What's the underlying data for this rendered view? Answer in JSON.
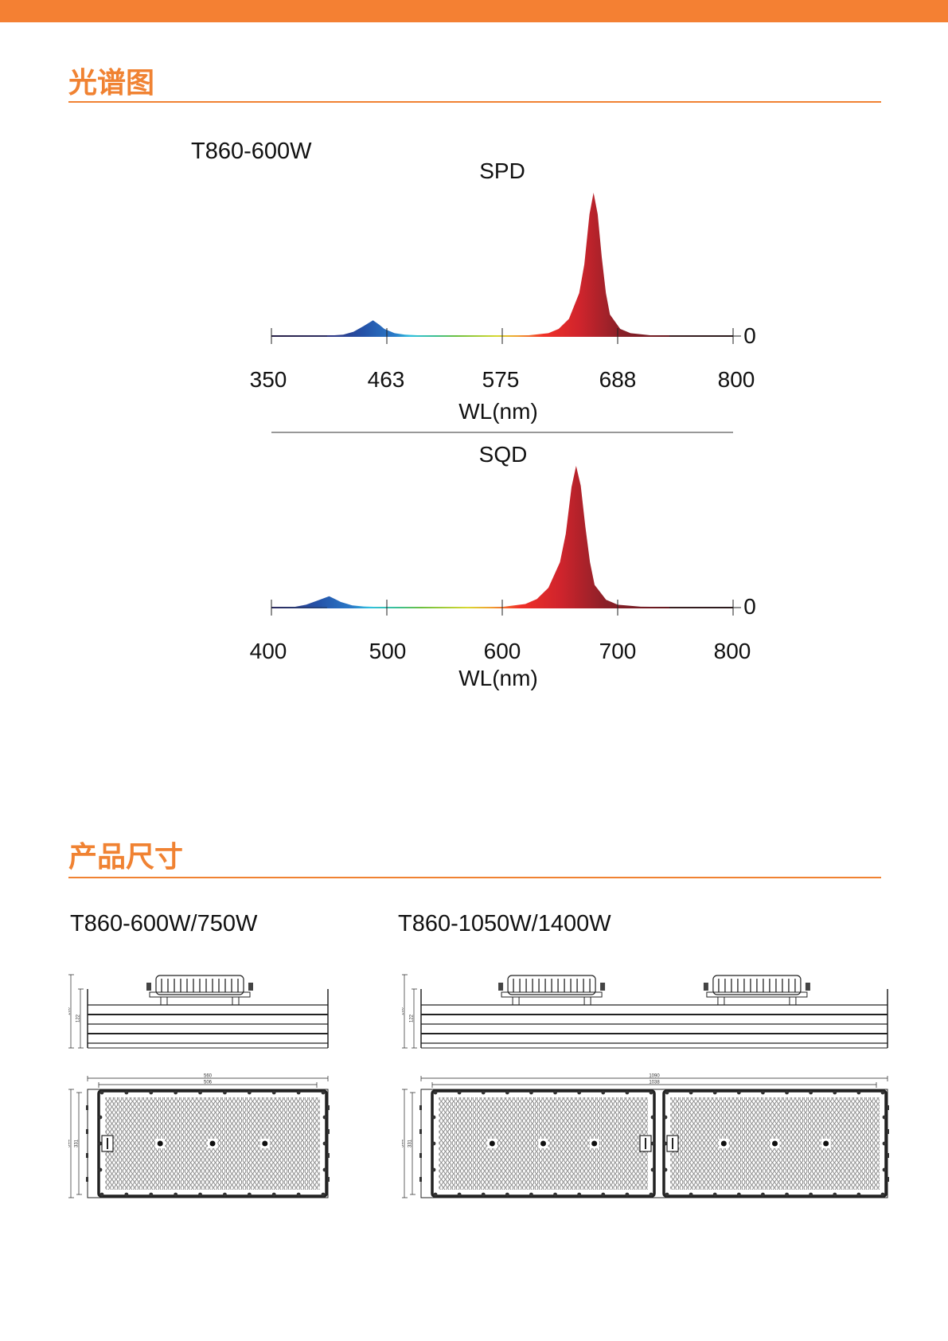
{
  "header": {
    "bar_color": "#f48033",
    "accent": "#f08232"
  },
  "spectrum_section": {
    "title": "光谱图",
    "model": "T860-600W"
  },
  "chart_data": [
    {
      "type": "area",
      "title": "SPD",
      "xlabel": "WL(nm)",
      "ylabel": "",
      "xlim": [
        350,
        800
      ],
      "x_ticks": [
        "350",
        "463",
        "575",
        "688",
        "800"
      ],
      "y_tick_label": "0",
      "grid": false,
      "fill": "spectral gradient by wavelength",
      "x": [
        350,
        400,
        420,
        430,
        440,
        449,
        455,
        460,
        470,
        480,
        500,
        550,
        600,
        620,
        630,
        640,
        650,
        655,
        660,
        664,
        668,
        672,
        676,
        680,
        690,
        700,
        720,
        800
      ],
      "values": [
        0,
        0,
        0.01,
        0.03,
        0.07,
        0.11,
        0.08,
        0.05,
        0.02,
        0.01,
        0.003,
        0.002,
        0.005,
        0.02,
        0.05,
        0.12,
        0.3,
        0.5,
        0.85,
        1.0,
        0.85,
        0.55,
        0.3,
        0.15,
        0.05,
        0.02,
        0.005,
        0
      ]
    },
    {
      "type": "area",
      "title": "SQD",
      "xlabel": "WL(nm)",
      "ylabel": "",
      "xlim": [
        400,
        800
      ],
      "x_ticks": [
        "400",
        "500",
        "600",
        "700",
        "800"
      ],
      "y_tick_label": "0",
      "grid": false,
      "fill": "spectral gradient by wavelength",
      "x": [
        400,
        420,
        430,
        440,
        450,
        455,
        460,
        470,
        480,
        500,
        550,
        600,
        620,
        630,
        640,
        650,
        655,
        660,
        664,
        668,
        672,
        676,
        680,
        690,
        700,
        720,
        800
      ],
      "values": [
        0,
        0.005,
        0.02,
        0.05,
        0.08,
        0.06,
        0.04,
        0.015,
        0.008,
        0.003,
        0.002,
        0.005,
        0.025,
        0.06,
        0.14,
        0.32,
        0.52,
        0.85,
        1.0,
        0.86,
        0.57,
        0.32,
        0.16,
        0.055,
        0.02,
        0.006,
        0
      ]
    }
  ],
  "dimension_section": {
    "title": "产品尺寸",
    "models": [
      {
        "name": "T860-600W/750W",
        "dims": {
          "height_total": "160",
          "height_body": "122",
          "length_total": "560",
          "length_inner": "506",
          "width_total": "344",
          "width_inner": "331"
        },
        "panels": 1
      },
      {
        "name": "T860-1050W/1400W",
        "dims": {
          "height_total": "160",
          "height_body": "122",
          "length_total": "1090",
          "length_inner": "1038",
          "width_total": "344",
          "width_inner": "331"
        },
        "panels": 2
      }
    ]
  }
}
